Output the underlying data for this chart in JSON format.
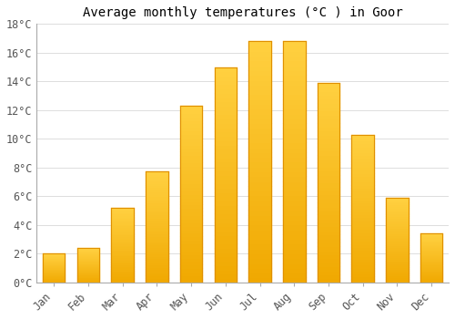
{
  "title": "Average monthly temperatures (°C ) in Goor",
  "months": [
    "Jan",
    "Feb",
    "Mar",
    "Apr",
    "May",
    "Jun",
    "Jul",
    "Aug",
    "Sep",
    "Oct",
    "Nov",
    "Dec"
  ],
  "values": [
    2.0,
    2.4,
    5.2,
    7.7,
    12.3,
    15.0,
    16.8,
    16.8,
    13.9,
    10.3,
    5.9,
    3.4
  ],
  "bar_color_bottom": "#F0A800",
  "bar_color_top": "#FFD040",
  "bar_border_color": "#E09000",
  "ylim": [
    0,
    18
  ],
  "yticks": [
    0,
    2,
    4,
    6,
    8,
    10,
    12,
    14,
    16,
    18
  ],
  "ytick_labels": [
    "0°C",
    "2°C",
    "4°C",
    "6°C",
    "8°C",
    "10°C",
    "12°C",
    "14°C",
    "16°C",
    "18°C"
  ],
  "background_color": "#ffffff",
  "grid_color": "#dddddd",
  "title_fontsize": 10,
  "tick_fontsize": 8.5,
  "bar_width": 0.65
}
